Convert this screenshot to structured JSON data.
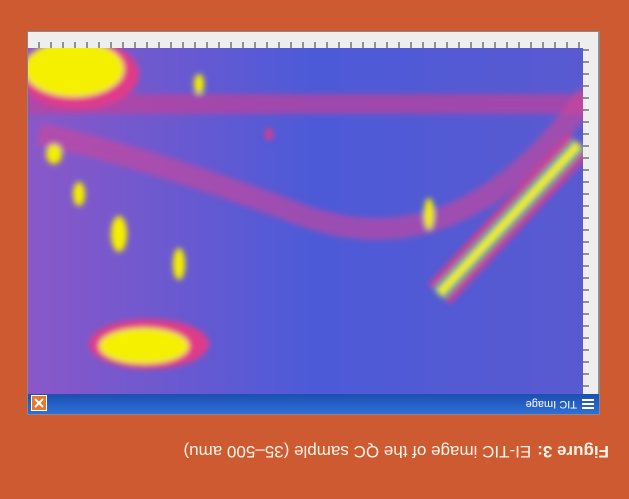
{
  "caption": {
    "label": "Figure 3:",
    "text": "EI-TIC image of the QC sample (35–500 amu)"
  },
  "window": {
    "title": "TIC Image"
  }
}
